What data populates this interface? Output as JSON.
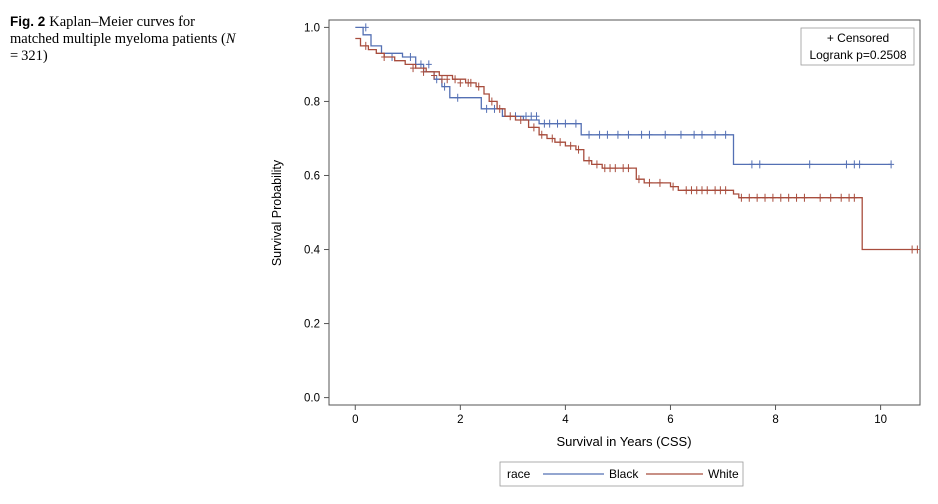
{
  "caption": {
    "label": "Fig. 2",
    "text_part1": "Kaplan–Meier curves for matched multiple myeloma patients (",
    "n_symbol": "N",
    "text_part2": " = 321)"
  },
  "chart_data": {
    "type": "line",
    "step": true,
    "xlabel": "Survival in Years (CSS)",
    "ylabel": "Survival Probability",
    "xlim": [
      -0.5,
      10.75
    ],
    "ylim": [
      -0.02,
      1.02
    ],
    "xticks": [
      0,
      2,
      4,
      6,
      8,
      10
    ],
    "yticks": [
      0.0,
      0.2,
      0.4,
      0.6,
      0.8,
      1.0
    ],
    "ytick_labels": [
      "0.0",
      "0.2",
      "0.4",
      "0.6",
      "0.8",
      "1.0"
    ],
    "grid": false,
    "inset_legend": {
      "placement": "top-right",
      "censored": "+ Censored",
      "logrank": "Logrank p=0.2508"
    },
    "legend": {
      "placement": "bottom",
      "title": "race"
    },
    "series": [
      {
        "name": "Black",
        "color": "#5470b4",
        "steps": [
          [
            0,
            1.0
          ],
          [
            0.15,
            0.98
          ],
          [
            0.3,
            0.95
          ],
          [
            0.5,
            0.93
          ],
          [
            0.9,
            0.92
          ],
          [
            1.15,
            0.9
          ],
          [
            1.3,
            0.88
          ],
          [
            1.5,
            0.86
          ],
          [
            1.65,
            0.84
          ],
          [
            1.8,
            0.81
          ],
          [
            2.4,
            0.78
          ],
          [
            2.8,
            0.76
          ],
          [
            3.2,
            0.75
          ],
          [
            3.5,
            0.74
          ],
          [
            4.3,
            0.71
          ],
          [
            7.2,
            0.63
          ],
          [
            10.2,
            0.63
          ]
        ],
        "censored": [
          [
            0.2,
            1.0
          ],
          [
            0.7,
            0.92
          ],
          [
            1.05,
            0.92
          ],
          [
            1.25,
            0.9
          ],
          [
            1.4,
            0.9
          ],
          [
            1.55,
            0.86
          ],
          [
            1.7,
            0.84
          ],
          [
            1.95,
            0.81
          ],
          [
            2.5,
            0.78
          ],
          [
            2.65,
            0.78
          ],
          [
            3.05,
            0.76
          ],
          [
            3.25,
            0.76
          ],
          [
            3.35,
            0.76
          ],
          [
            3.45,
            0.76
          ],
          [
            3.6,
            0.74
          ],
          [
            3.7,
            0.74
          ],
          [
            3.85,
            0.74
          ],
          [
            4.0,
            0.74
          ],
          [
            4.2,
            0.74
          ],
          [
            4.45,
            0.71
          ],
          [
            4.65,
            0.71
          ],
          [
            4.8,
            0.71
          ],
          [
            5.0,
            0.71
          ],
          [
            5.2,
            0.71
          ],
          [
            5.45,
            0.71
          ],
          [
            5.6,
            0.71
          ],
          [
            5.9,
            0.71
          ],
          [
            6.2,
            0.71
          ],
          [
            6.45,
            0.71
          ],
          [
            6.6,
            0.71
          ],
          [
            6.85,
            0.71
          ],
          [
            7.05,
            0.71
          ],
          [
            7.55,
            0.63
          ],
          [
            7.7,
            0.63
          ],
          [
            8.65,
            0.63
          ],
          [
            9.35,
            0.63
          ],
          [
            9.5,
            0.63
          ],
          [
            9.6,
            0.63
          ],
          [
            10.2,
            0.63
          ]
        ]
      },
      {
        "name": "White",
        "color": "#a84d3d",
        "steps": [
          [
            0,
            0.97
          ],
          [
            0.1,
            0.95
          ],
          [
            0.25,
            0.94
          ],
          [
            0.4,
            0.93
          ],
          [
            0.55,
            0.92
          ],
          [
            0.75,
            0.91
          ],
          [
            0.95,
            0.9
          ],
          [
            1.15,
            0.89
          ],
          [
            1.35,
            0.88
          ],
          [
            1.6,
            0.87
          ],
          [
            1.85,
            0.86
          ],
          [
            2.1,
            0.85
          ],
          [
            2.3,
            0.84
          ],
          [
            2.45,
            0.82
          ],
          [
            2.55,
            0.8
          ],
          [
            2.7,
            0.78
          ],
          [
            2.85,
            0.76
          ],
          [
            3.05,
            0.75
          ],
          [
            3.3,
            0.73
          ],
          [
            3.5,
            0.71
          ],
          [
            3.65,
            0.7
          ],
          [
            3.8,
            0.69
          ],
          [
            4.0,
            0.68
          ],
          [
            4.2,
            0.67
          ],
          [
            4.35,
            0.64
          ],
          [
            4.5,
            0.63
          ],
          [
            4.7,
            0.62
          ],
          [
            5.0,
            0.62
          ],
          [
            5.35,
            0.59
          ],
          [
            5.5,
            0.58
          ],
          [
            5.7,
            0.58
          ],
          [
            6.0,
            0.57
          ],
          [
            6.15,
            0.56
          ],
          [
            7.2,
            0.55
          ],
          [
            7.3,
            0.54
          ],
          [
            9.65,
            0.4
          ],
          [
            10.7,
            0.4
          ]
        ],
        "censored": [
          [
            0.2,
            0.95
          ],
          [
            0.55,
            0.92
          ],
          [
            1.1,
            0.89
          ],
          [
            1.3,
            0.88
          ],
          [
            1.5,
            0.87
          ],
          [
            1.65,
            0.86
          ],
          [
            1.75,
            0.86
          ],
          [
            1.9,
            0.86
          ],
          [
            2.0,
            0.85
          ],
          [
            2.15,
            0.85
          ],
          [
            2.2,
            0.85
          ],
          [
            2.35,
            0.84
          ],
          [
            2.6,
            0.8
          ],
          [
            2.75,
            0.78
          ],
          [
            2.95,
            0.76
          ],
          [
            3.15,
            0.75
          ],
          [
            3.4,
            0.73
          ],
          [
            3.55,
            0.71
          ],
          [
            3.75,
            0.7
          ],
          [
            3.9,
            0.69
          ],
          [
            4.1,
            0.68
          ],
          [
            4.25,
            0.67
          ],
          [
            4.45,
            0.64
          ],
          [
            4.6,
            0.63
          ],
          [
            4.75,
            0.62
          ],
          [
            4.85,
            0.62
          ],
          [
            4.95,
            0.62
          ],
          [
            5.1,
            0.62
          ],
          [
            5.2,
            0.62
          ],
          [
            5.4,
            0.59
          ],
          [
            5.6,
            0.58
          ],
          [
            5.8,
            0.58
          ],
          [
            6.05,
            0.57
          ],
          [
            6.3,
            0.56
          ],
          [
            6.4,
            0.56
          ],
          [
            6.5,
            0.56
          ],
          [
            6.6,
            0.56
          ],
          [
            6.7,
            0.56
          ],
          [
            6.85,
            0.56
          ],
          [
            6.95,
            0.56
          ],
          [
            7.05,
            0.56
          ],
          [
            7.35,
            0.54
          ],
          [
            7.5,
            0.54
          ],
          [
            7.65,
            0.54
          ],
          [
            7.8,
            0.54
          ],
          [
            7.95,
            0.54
          ],
          [
            8.1,
            0.54
          ],
          [
            8.25,
            0.54
          ],
          [
            8.4,
            0.54
          ],
          [
            8.55,
            0.54
          ],
          [
            8.85,
            0.54
          ],
          [
            9.05,
            0.54
          ],
          [
            9.25,
            0.54
          ],
          [
            9.4,
            0.54
          ],
          [
            9.5,
            0.54
          ],
          [
            10.6,
            0.4
          ],
          [
            10.7,
            0.4
          ]
        ]
      }
    ]
  }
}
